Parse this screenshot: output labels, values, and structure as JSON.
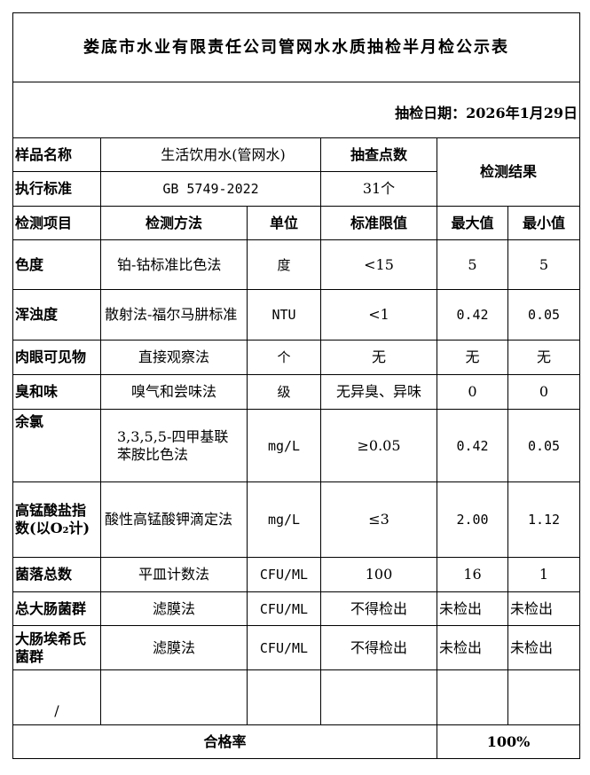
{
  "title": "娄底市水业有限责任公司管网水水质抽检半月检公示表",
  "date_label": "抽检日期：2026年1月29日",
  "info": {
    "sample_name_label": "样品名称",
    "sample_name": "生活饮用水(管网水)",
    "points_label": "抽查点数",
    "standard_label": "执行标准",
    "standard": "GB 5749-2022",
    "points": "31个",
    "result_label": "检测结果"
  },
  "headers": [
    "检测项目",
    "检测方法",
    "单位",
    "标准限值",
    "最大值",
    "最小值"
  ],
  "rows": [
    {
      "item": "色度",
      "method": "铂-钴标准比色法",
      "unit": "度",
      "limit": "<15",
      "max": "5",
      "min": "5"
    },
    {
      "item": "浑浊度",
      "method": "散射法-福尔马肼标准",
      "unit": "NTU",
      "limit": "<1",
      "max": "0.42",
      "min": "0.05"
    },
    {
      "item": "肉眼可见物",
      "method": "直接观察法",
      "unit": "个",
      "limit": "无",
      "max": "无",
      "min": "无"
    },
    {
      "item": "臭和味",
      "method": "嗅气和尝味法",
      "unit": "级",
      "limit": "无异臭、异味",
      "max": "0",
      "min": "0"
    },
    {
      "item": "余氯",
      "method": "3,3,5,5-四甲基联 苯胺比色法",
      "unit": "mg/L",
      "limit": "≥0.05",
      "max": "0.42",
      "min": "0.05"
    },
    {
      "item": "高锰酸盐指 数(以O₂计)",
      "method": "酸性高锰酸钾滴定法",
      "unit": "mg/L",
      "limit": "≤3",
      "max": "2.00",
      "min": "1.12"
    },
    {
      "item": "菌落总数",
      "method": "平皿计数法",
      "unit": "CFU/ML",
      "limit": "100",
      "max": "16",
      "min": "1"
    },
    {
      "item": "总大肠菌群",
      "method": "滤膜法",
      "unit": "CFU/ML",
      "limit": "不得检出",
      "max": "未检出",
      "min": "未检出"
    },
    {
      "item": "大肠埃希氏 菌群",
      "method": "滤膜法",
      "unit": "CFU/ML",
      "limit": "不得检出",
      "max": "未检出",
      "min": "未检出"
    },
    {
      "item": "/",
      "method": "",
      "unit": "",
      "limit": "",
      "max": "",
      "min": ""
    }
  ],
  "pass_rate_label": "合格率",
  "pass_rate": "100%"
}
